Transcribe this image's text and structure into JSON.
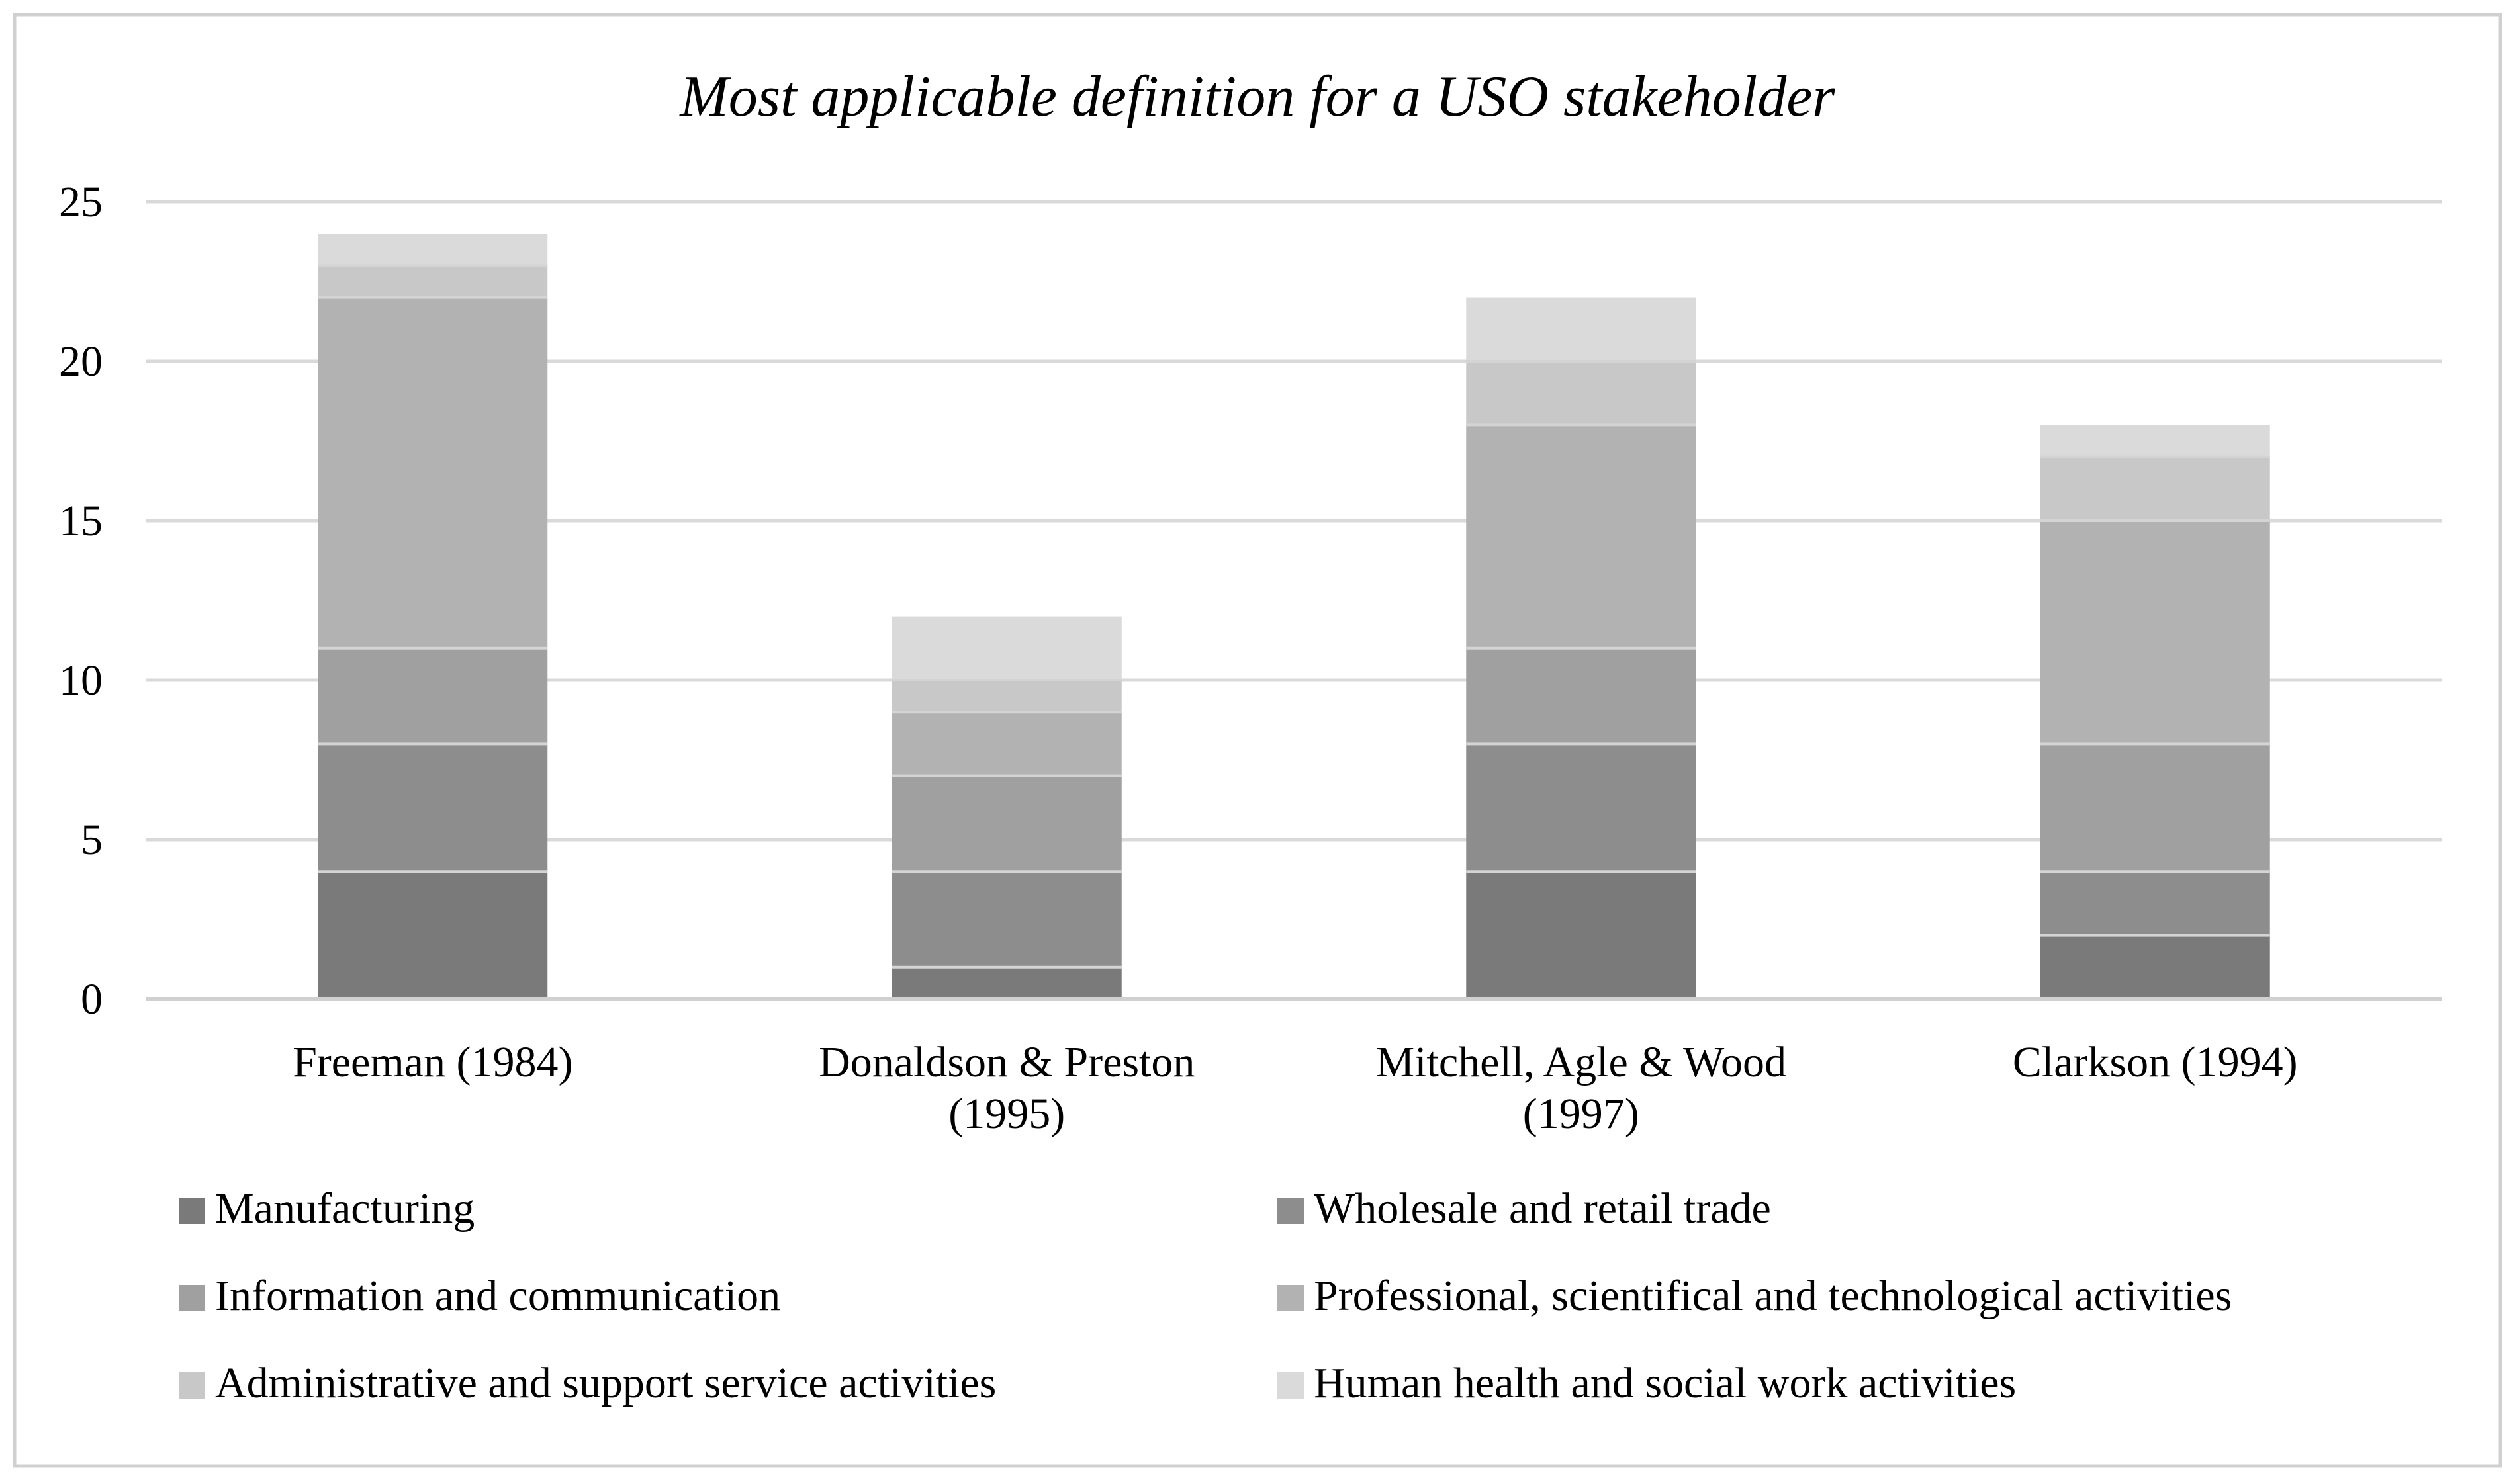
{
  "chart_data": {
    "type": "bar",
    "stacked": true,
    "title": "Most applicable definition for a USO stakeholder",
    "xlabel": "",
    "ylabel": "",
    "ylim": [
      0,
      25
    ],
    "yticks": [
      0,
      5,
      10,
      15,
      20,
      25
    ],
    "grid": true,
    "legend": "bottom",
    "categories": [
      [
        "Freeman (1984)"
      ],
      [
        "Donaldson & Preston",
        "(1995)"
      ],
      [
        "Mitchell, Agle & Wood",
        "(1997)"
      ],
      [
        "Clarkson (1994)"
      ]
    ],
    "series": [
      {
        "name": "Manufacturing",
        "color": "#7a7a7a",
        "values": [
          4,
          1,
          4,
          2
        ]
      },
      {
        "name": "Wholesale and retail trade",
        "color": "#8d8d8d",
        "values": [
          4,
          3,
          4,
          2
        ]
      },
      {
        "name": "Information and communication",
        "color": "#a0a0a0",
        "values": [
          3,
          3,
          3,
          4
        ]
      },
      {
        "name": "Professional, scientifical and technological activities",
        "color": "#b2b2b2",
        "values": [
          11,
          2,
          7,
          7
        ]
      },
      {
        "name": "Administrative and support service activities",
        "color": "#c8c8c8",
        "values": [
          1,
          1,
          2,
          2
        ]
      },
      {
        "name": "Human health and social work activities",
        "color": "#dadada",
        "values": [
          1,
          2,
          2,
          1
        ]
      }
    ]
  }
}
